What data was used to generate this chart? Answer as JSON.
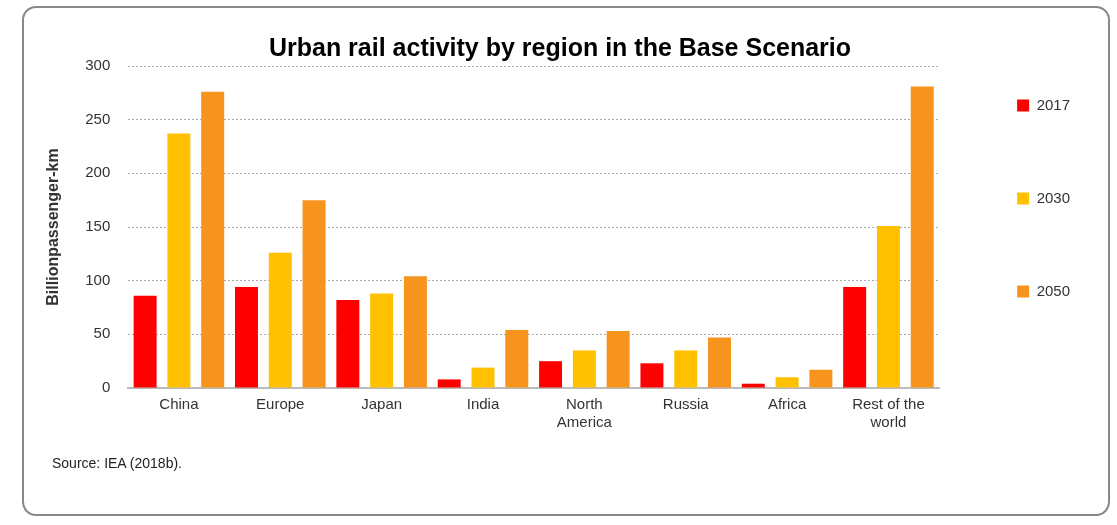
{
  "chart_data": {
    "type": "bar",
    "title": "Urban rail activity by region in the Base Scenario",
    "ylabel": "Billionpassenger-km",
    "categories": [
      "China",
      "Europe",
      "Japan",
      "India",
      "North America",
      "Russia",
      "Africa",
      "Rest of the world"
    ],
    "series": [
      {
        "name": "2017",
        "color": "#ff0000",
        "values": [
          86,
          94,
          82,
          8,
          25,
          23,
          4,
          94
        ]
      },
      {
        "name": "2030",
        "color": "#ffc000",
        "values": [
          237,
          126,
          88,
          19,
          35,
          35,
          10,
          151
        ]
      },
      {
        "name": "2050",
        "color": "#f7941d",
        "values": [
          276,
          175,
          104,
          54,
          53,
          47,
          17,
          281
        ]
      }
    ],
    "ylim": [
      0,
      300
    ],
    "yticks": [
      0,
      50,
      100,
      150,
      200,
      250,
      300
    ],
    "grid": "y",
    "legend": "right",
    "annotations": [
      "Source: IEA (2018b)."
    ]
  }
}
